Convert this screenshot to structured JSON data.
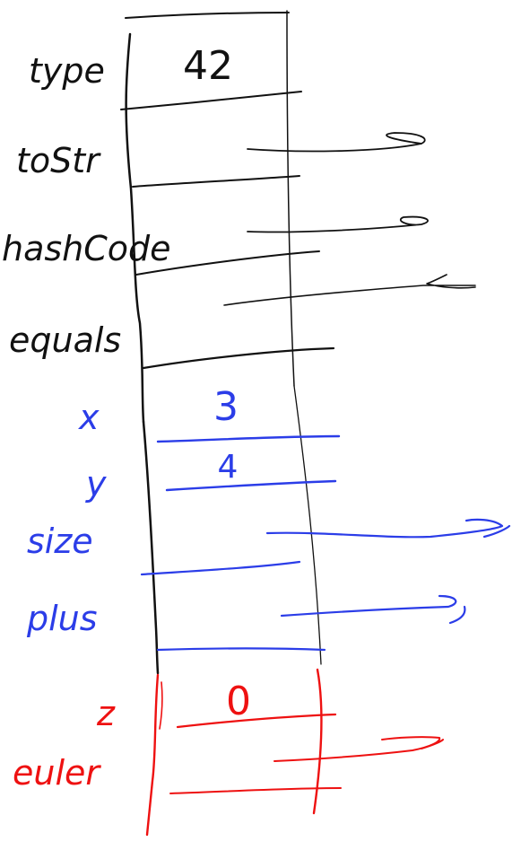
{
  "colors": {
    "black": "#111111",
    "blue": "#2b3de8",
    "red": "#ee1111"
  },
  "fields": [
    {
      "label": "type",
      "value": "42",
      "color": "black",
      "pointer": false
    },
    {
      "label": "toStr",
      "value": "",
      "color": "black",
      "pointer": true
    },
    {
      "label": "hashCode",
      "value": "",
      "color": "black",
      "pointer": true
    },
    {
      "label": "equals",
      "value": "",
      "color": "black",
      "pointer": true
    },
    {
      "label": "x",
      "value": "3",
      "color": "blue",
      "pointer": false
    },
    {
      "label": "y",
      "value": "4",
      "color": "blue",
      "pointer": false
    },
    {
      "label": "size",
      "value": "",
      "color": "blue",
      "pointer": true
    },
    {
      "label": "plus",
      "value": "",
      "color": "blue",
      "pointer": true
    },
    {
      "label": "z",
      "value": "0",
      "color": "red",
      "pointer": false
    },
    {
      "label": "euler",
      "value": "",
      "color": "red",
      "pointer": true
    }
  ]
}
